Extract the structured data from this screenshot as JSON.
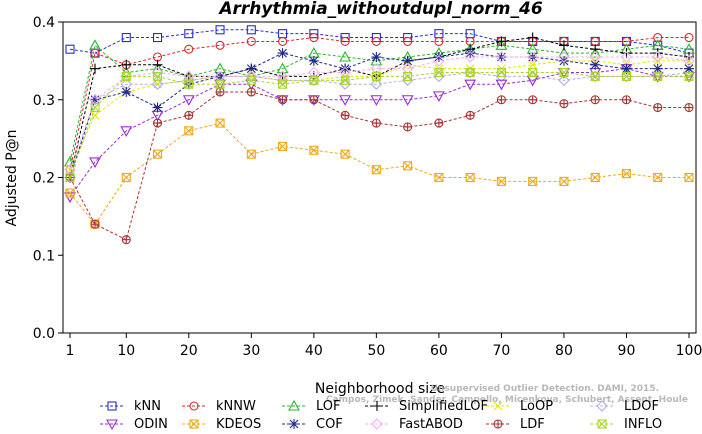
{
  "chart_data": {
    "type": "line",
    "title": "Arrhythmia_withoutdupl_norm_46",
    "xlabel": "Neighborhood size",
    "ylabel": "Adjusted P@n",
    "xlim": [
      1,
      100
    ],
    "ylim": [
      0,
      0.4
    ],
    "xticks": [
      "1",
      "10",
      "20",
      "30",
      "40",
      "50",
      "60",
      "70",
      "80",
      "90",
      "100"
    ],
    "yticks": [
      "0.0",
      "0.1",
      "0.2",
      "0.3",
      "0.4"
    ],
    "credit_lines": [
      "Unsupervised Outlier Detection. DAMI, 2015.",
      "Campos, Zimek, Sander, Campello, Micenkova, Schubert, Assent, Houle"
    ],
    "x": [
      1,
      5,
      10,
      15,
      20,
      25,
      30,
      35,
      40,
      45,
      50,
      55,
      60,
      65,
      70,
      75,
      80,
      85,
      90,
      95,
      100
    ],
    "series": [
      {
        "name": "kNN",
        "color": "#2a2ad6",
        "marker": "square",
        "values": [
          0.365,
          0.36,
          0.38,
          0.38,
          0.385,
          0.39,
          0.39,
          0.385,
          0.385,
          0.38,
          0.38,
          0.38,
          0.385,
          0.385,
          0.375,
          0.375,
          0.375,
          0.375,
          0.375,
          0.37,
          0.36
        ]
      },
      {
        "name": "kNNW",
        "color": "#d62a2a",
        "marker": "circle",
        "values": [
          0.21,
          0.36,
          0.345,
          0.355,
          0.365,
          0.37,
          0.375,
          0.375,
          0.38,
          0.375,
          0.375,
          0.375,
          0.375,
          0.375,
          0.375,
          0.375,
          0.375,
          0.375,
          0.375,
          0.38,
          0.38
        ]
      },
      {
        "name": "LOF",
        "color": "#2ab52a",
        "marker": "triangle-up",
        "values": [
          0.22,
          0.37,
          0.335,
          0.34,
          0.33,
          0.34,
          0.33,
          0.34,
          0.36,
          0.355,
          0.35,
          0.355,
          0.36,
          0.365,
          0.37,
          0.365,
          0.36,
          0.36,
          0.365,
          0.37,
          0.365
        ]
      },
      {
        "name": "SimplifiedLOF",
        "color": "#000000",
        "marker": "plus",
        "values": [
          0.2,
          0.34,
          0.345,
          0.345,
          0.33,
          0.33,
          0.34,
          0.33,
          0.33,
          0.34,
          0.33,
          0.35,
          0.355,
          0.365,
          0.375,
          0.38,
          0.37,
          0.365,
          0.36,
          0.36,
          0.355
        ]
      },
      {
        "name": "LoOP",
        "color": "#e6e600",
        "marker": "cross",
        "values": [
          0.21,
          0.28,
          0.31,
          0.32,
          0.325,
          0.33,
          0.33,
          0.325,
          0.325,
          0.33,
          0.33,
          0.345,
          0.34,
          0.34,
          0.34,
          0.345,
          0.35,
          0.35,
          0.345,
          0.35,
          0.35
        ]
      },
      {
        "name": "LDOF",
        "color": "#b0b0e6",
        "marker": "diamond",
        "values": [
          0.2,
          0.3,
          0.32,
          0.32,
          0.325,
          0.33,
          0.33,
          0.325,
          0.325,
          0.32,
          0.32,
          0.325,
          0.33,
          0.335,
          0.33,
          0.33,
          0.325,
          0.33,
          0.33,
          0.33,
          0.335
        ]
      },
      {
        "name": "ODIN",
        "color": "#9a2ad6",
        "marker": "triangle-down",
        "values": [
          0.175,
          0.22,
          0.26,
          0.28,
          0.3,
          0.32,
          0.32,
          0.3,
          0.3,
          0.3,
          0.3,
          0.3,
          0.305,
          0.32,
          0.32,
          0.325,
          0.335,
          0.335,
          0.34,
          0.33,
          0.33
        ]
      },
      {
        "name": "KDEOS",
        "color": "#f0a818",
        "marker": "square-x",
        "values": [
          0.18,
          0.14,
          0.2,
          0.23,
          0.26,
          0.27,
          0.23,
          0.24,
          0.235,
          0.23,
          0.21,
          0.215,
          0.2,
          0.2,
          0.195,
          0.195,
          0.195,
          0.2,
          0.205,
          0.2,
          0.2
        ]
      },
      {
        "name": "COF",
        "color": "#1a2a8a",
        "marker": "asterisk",
        "values": [
          0.2,
          0.3,
          0.31,
          0.29,
          0.32,
          0.33,
          0.34,
          0.36,
          0.35,
          0.34,
          0.355,
          0.35,
          0.355,
          0.36,
          0.355,
          0.355,
          0.35,
          0.345,
          0.34,
          0.34,
          0.34
        ]
      },
      {
        "name": "FastABOD",
        "color": "#f0b0f0",
        "marker": "diamond",
        "values": [
          0.21,
          0.3,
          0.33,
          0.335,
          0.33,
          0.33,
          0.33,
          0.33,
          0.335,
          0.335,
          0.34,
          0.34,
          0.35,
          0.355,
          0.355,
          0.355,
          0.355,
          0.355,
          0.355,
          0.355,
          0.35
        ]
      },
      {
        "name": "LDF",
        "color": "#a83232",
        "marker": "circle-plus",
        "values": [
          0.2,
          0.14,
          0.12,
          0.27,
          0.28,
          0.31,
          0.31,
          0.3,
          0.3,
          0.28,
          0.27,
          0.265,
          0.27,
          0.28,
          0.3,
          0.3,
          0.295,
          0.3,
          0.3,
          0.29,
          0.29
        ]
      },
      {
        "name": "INFLO",
        "color": "#a8d628",
        "marker": "square-x",
        "values": [
          0.2,
          0.29,
          0.33,
          0.33,
          0.32,
          0.32,
          0.325,
          0.32,
          0.325,
          0.325,
          0.33,
          0.33,
          0.335,
          0.335,
          0.335,
          0.335,
          0.335,
          0.33,
          0.33,
          0.33,
          0.33
        ]
      }
    ],
    "legend": {
      "rows": [
        [
          "kNN",
          "kNNW",
          "LOF",
          "SimplifiedLOF",
          "LoOP",
          "LDOF"
        ],
        [
          "ODIN",
          "KDEOS",
          "COF",
          "FastABOD",
          "LDF",
          "INFLO"
        ]
      ]
    }
  }
}
